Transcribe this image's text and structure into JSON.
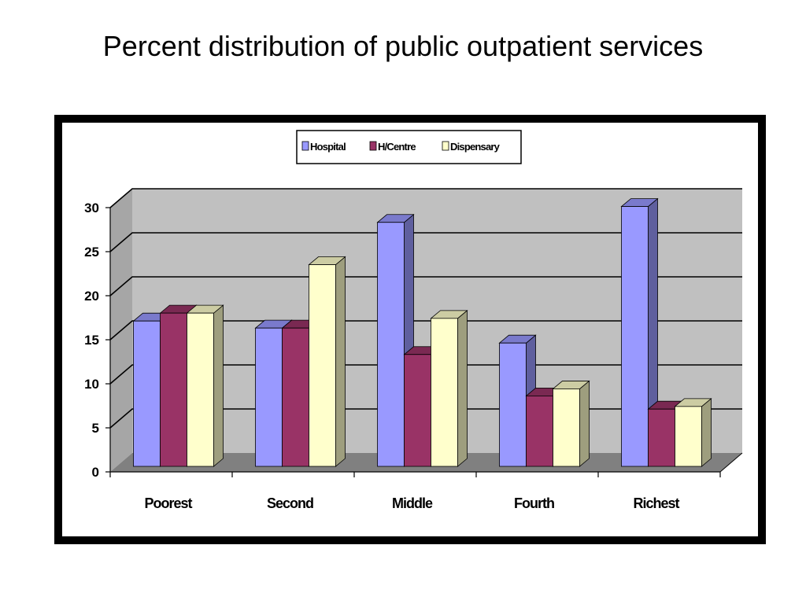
{
  "slide": {
    "title": "Percent distribution of public outpatient services"
  },
  "colors": {
    "hospital": "#9999ff",
    "hcentre": "#993366",
    "dispensary": "#ffffcc",
    "wall": "#c0c0c0",
    "floor": "#808080"
  },
  "chart_data": {
    "type": "bar",
    "three_d": true,
    "title": "",
    "xlabel": "",
    "ylabel": "",
    "categories": [
      "Poorest",
      "Second",
      "Middle",
      "Fourth",
      "Richest"
    ],
    "series": [
      {
        "name": "Hospital",
        "color": "#9999ff",
        "values": [
          16.5,
          15.7,
          27.7,
          14.0,
          29.5
        ]
      },
      {
        "name": "H/Centre",
        "color": "#993366",
        "values": [
          17.4,
          15.7,
          12.7,
          8.0,
          6.5
        ]
      },
      {
        "name": "Dispensary",
        "color": "#ffffcc",
        "values": [
          17.4,
          22.9,
          16.8,
          8.8,
          6.8
        ]
      }
    ],
    "ylim": [
      0,
      30
    ],
    "yticks": [
      0,
      5,
      10,
      15,
      20,
      25,
      30
    ],
    "grid": true,
    "legend": "top-center"
  }
}
